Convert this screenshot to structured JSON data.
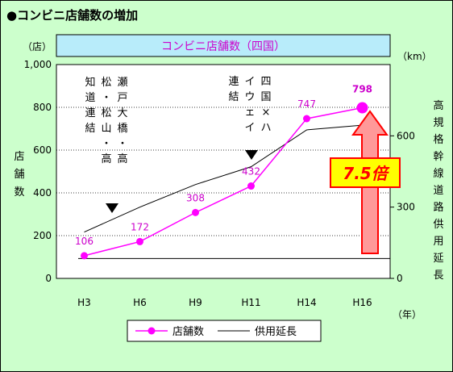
{
  "header": {
    "title": "●コンビニ店舗数の増加"
  },
  "chart_data": {
    "type": "line",
    "title": "コンビニ店舗数（四国）",
    "categories": [
      "H3",
      "H6",
      "H9",
      "H11",
      "H14",
      "H16"
    ],
    "x_unit": "（年）",
    "y_left": {
      "label": "店舗数",
      "unit": "（店）",
      "range": [
        0,
        1000
      ],
      "ticks": [
        "0",
        "200",
        "400",
        "600",
        "800",
        "1,000"
      ]
    },
    "y_right": {
      "label": "高規格幹線道路供用延長",
      "unit": "（km）",
      "range": [
        0,
        900
      ],
      "ticks": [
        "0",
        "300",
        "600"
      ]
    },
    "series": [
      {
        "name": "店舗数",
        "axis": "left",
        "color": "#ff00ff",
        "values": [
          106,
          172,
          308,
          432,
          747,
          798
        ],
        "labels": [
          "106",
          "172",
          "308",
          "432",
          "747",
          "798"
        ]
      },
      {
        "name": "供用延長",
        "axis": "right",
        "color": "#000000",
        "values": [
          195,
          300,
          395,
          470,
          625,
          645
        ]
      }
    ],
    "reference_line": {
      "axis": "left",
      "value": 93
    },
    "annotations": {
      "event1": "瀬戸大橋・高松・松山・高知道連結",
      "event2": "四国×ハイウェイ連結",
      "multiplier": "7.5倍"
    },
    "legend_position": "bottom",
    "grid": "dotted-horizontal"
  }
}
